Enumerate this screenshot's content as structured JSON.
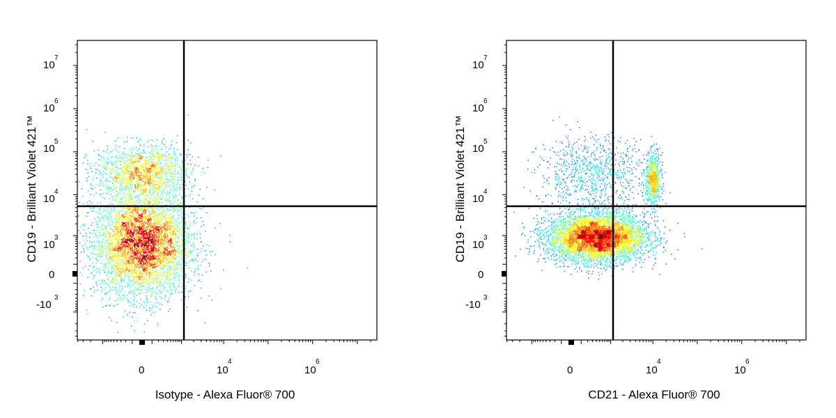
{
  "chart_data": [
    {
      "type": "scatter",
      "density_colored": true,
      "xlabel": "Isotype - Alexa Fluor® 700",
      "ylabel": "CD19 - Brilliant Violet 421™",
      "x_scale": "biexponential",
      "y_scale": "biexponential",
      "x_ticks": [
        {
          "value": 0,
          "base": "0",
          "exp": ""
        },
        {
          "value": 10000,
          "base": "10",
          "exp": "4"
        },
        {
          "value": 1000000,
          "base": "10",
          "exp": "6"
        }
      ],
      "y_ticks": [
        {
          "value": 10000000,
          "base": "10",
          "exp": "7"
        },
        {
          "value": 1000000,
          "base": "10",
          "exp": "6"
        },
        {
          "value": 100000,
          "base": "10",
          "exp": "5"
        },
        {
          "value": 10000,
          "base": "10",
          "exp": "4"
        },
        {
          "value": 1000,
          "base": "10",
          "exp": "3"
        },
        {
          "value": 0,
          "base": "0",
          "exp": ""
        },
        {
          "value": -1000,
          "base": "-10",
          "exp": "3"
        }
      ],
      "quadrant_gate": {
        "x": 1000,
        "y": 6000
      },
      "populations": [
        {
          "x_center": 0,
          "y_center": 600,
          "x_spread": 380,
          "y_spread": 700,
          "count": 5200
        },
        {
          "x_center": 0,
          "y_center": 35000,
          "x_spread": 360,
          "y_spread": 0.14,
          "count": 1500
        }
      ]
    },
    {
      "type": "scatter",
      "density_colored": true,
      "xlabel": "CD21 - Alexa Fluor® 700",
      "ylabel": "CD19 - Brilliant Violet 421™",
      "x_scale": "biexponential",
      "y_scale": "biexponential",
      "x_ticks": [
        {
          "value": 0,
          "base": "0",
          "exp": ""
        },
        {
          "value": 10000,
          "base": "10",
          "exp": "4"
        },
        {
          "value": 1000000,
          "base": "10",
          "exp": "6"
        }
      ],
      "y_ticks": [
        {
          "value": 10000000,
          "base": "10",
          "exp": "7"
        },
        {
          "value": 1000000,
          "base": "10",
          "exp": "6"
        },
        {
          "value": 100000,
          "base": "10",
          "exp": "5"
        },
        {
          "value": 10000,
          "base": "10",
          "exp": "4"
        },
        {
          "value": 1000,
          "base": "10",
          "exp": "3"
        },
        {
          "value": 0,
          "base": "0",
          "exp": ""
        },
        {
          "value": -1000,
          "base": "-10",
          "exp": "3"
        }
      ],
      "quadrant_gate": {
        "x": 1000,
        "y": 6000
      },
      "populations": [
        {
          "x_center": 400,
          "y_center": 900,
          "x_spread": 1.0,
          "y_spread": 600,
          "count": 6500
        },
        {
          "x_center": 10000,
          "y_center": 22000,
          "x_spread": 0.16,
          "y_spread": 0.14,
          "count": 700
        },
        {
          "x_center": 300,
          "y_center": 30000,
          "x_spread": 1.1,
          "y_spread": 0.2,
          "count": 900
        }
      ]
    }
  ]
}
